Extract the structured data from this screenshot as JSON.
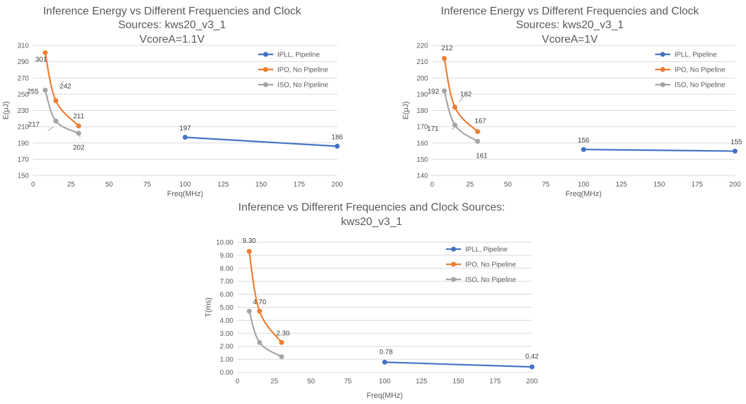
{
  "chart_data": [
    {
      "type": "line",
      "title": [
        "Inference Energy vs Different Frequencies and Clock",
        "Sources: kws20_v3_1",
        "VcoreA=1.1V"
      ],
      "xlabel": "Freq(MHz)",
      "ylabel": "E(μJ)",
      "xlim": [
        0,
        200
      ],
      "xticks": [
        0,
        25,
        50,
        75,
        100,
        125,
        150,
        175,
        200
      ],
      "ylim": [
        150,
        310
      ],
      "yticks": [
        150,
        170,
        190,
        210,
        230,
        250,
        270,
        290,
        310
      ],
      "ytick_decimals": 0,
      "grid": true,
      "legend": "right",
      "series": [
        {
          "name": "IPLL, Pipeline",
          "color": "#4472C4",
          "smooth": false,
          "x": [
            100,
            200
          ],
          "y": [
            197,
            186
          ],
          "labels": [
            "197",
            "186"
          ]
        },
        {
          "name": "IPO, No Pipeline",
          "color": "#ED7D31",
          "smooth": true,
          "x": [
            8,
            15,
            30
          ],
          "y": [
            301,
            242,
            211
          ],
          "labels": [
            "301",
            "242",
            "211"
          ]
        },
        {
          "name": "ISO, No Pipeline",
          "color": "#A5A5A5",
          "smooth": true,
          "x": [
            8,
            15,
            30
          ],
          "y": [
            255,
            217,
            202
          ],
          "labels": [
            "255",
            "217",
            "202"
          ]
        }
      ]
    },
    {
      "type": "line",
      "title": [
        "Inference Energy vs Different Frequencies and Clock",
        "Sources: kws20_v3_1",
        "VcoreA=1V"
      ],
      "xlabel": "Freq(MHz)",
      "ylabel": "E(μJ)",
      "xlim": [
        0,
        200
      ],
      "xticks": [
        0,
        25,
        50,
        75,
        100,
        125,
        150,
        175,
        200
      ],
      "ylim": [
        140,
        220
      ],
      "yticks": [
        140,
        150,
        160,
        170,
        180,
        190,
        200,
        210,
        220
      ],
      "ytick_decimals": 0,
      "grid": true,
      "legend": "right",
      "series": [
        {
          "name": "IPLL, Pipeline",
          "color": "#4472C4",
          "smooth": false,
          "x": [
            100,
            200
          ],
          "y": [
            156,
            155
          ],
          "labels": [
            "156",
            "155"
          ]
        },
        {
          "name": "IPO, No Pipeline",
          "color": "#ED7D31",
          "smooth": true,
          "x": [
            8,
            15,
            30
          ],
          "y": [
            212,
            182,
            167
          ],
          "labels": [
            "212",
            "182",
            "167"
          ]
        },
        {
          "name": "ISO, No Pipeline",
          "color": "#A5A5A5",
          "smooth": true,
          "x": [
            8,
            15,
            30
          ],
          "y": [
            192,
            171,
            161
          ],
          "labels": [
            "192",
            "171",
            "161"
          ]
        }
      ]
    },
    {
      "type": "line",
      "title": [
        "Inference vs Different Frequencies and Clock Sources:",
        "kws20_v3_1"
      ],
      "xlabel": "Freq(MHz)",
      "ylabel": "T(ms)",
      "xlim": [
        0,
        200
      ],
      "xticks": [
        0,
        25,
        50,
        75,
        100,
        125,
        150,
        175,
        200
      ],
      "ylim": [
        0,
        10
      ],
      "yticks": [
        0,
        1,
        2,
        3,
        4,
        5,
        6,
        7,
        8,
        9,
        10
      ],
      "ytick_decimals": 2,
      "grid": true,
      "legend": "right",
      "series": [
        {
          "name": "IPLL, Pipeline",
          "color": "#4472C4",
          "smooth": false,
          "x": [
            100,
            200
          ],
          "y": [
            0.78,
            0.42
          ],
          "labels": [
            "0.78",
            "0.42"
          ]
        },
        {
          "name": "IPO, No Pipeline",
          "color": "#ED7D31",
          "smooth": true,
          "x": [
            8,
            15,
            30
          ],
          "y": [
            9.3,
            4.7,
            2.3
          ],
          "labels": [
            "9.30",
            "4.70",
            "2.30"
          ]
        },
        {
          "name": "ISO, No Pipeline",
          "color": "#A5A5A5",
          "smooth": true,
          "x": [
            8,
            15,
            30
          ],
          "y": [
            4.7,
            2.3,
            1.2
          ],
          "labels": [
            "",
            "",
            ""
          ]
        }
      ]
    }
  ]
}
